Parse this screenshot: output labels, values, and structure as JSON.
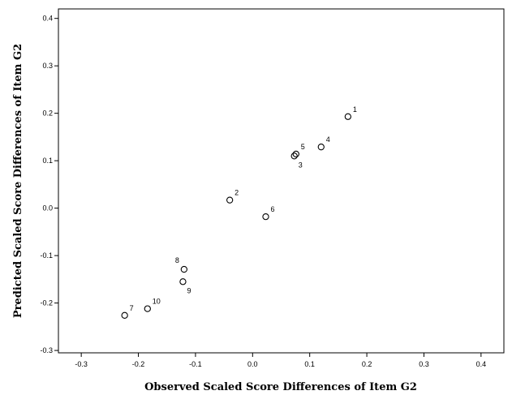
{
  "chart_data": {
    "type": "scatter",
    "xlabel": "Observed Scaled Score Differences of Item G2",
    "ylabel": "Predicted Scaled Score Differences of Item G2",
    "xlim": [
      -0.34,
      0.44
    ],
    "ylim": [
      -0.305,
      0.42
    ],
    "xticks": [
      -0.3,
      -0.2,
      -0.1,
      0.0,
      0.1,
      0.2,
      0.3,
      0.4
    ],
    "xtick_labels": [
      "-0.3",
      "-0.2",
      "-0.1",
      "0.0",
      "0.1",
      "0.2",
      "0.3",
      "0.4"
    ],
    "yticks": [
      -0.3,
      -0.2,
      -0.1,
      0.0,
      0.1,
      0.2,
      0.3,
      0.4
    ],
    "ytick_labels": [
      "-0.3",
      "-0.2",
      "-0.1",
      "0.0",
      "0.1",
      "0.2",
      "0.3",
      "0.4"
    ],
    "grid": false,
    "marker": "hollow-circle",
    "points": [
      {
        "label": "1",
        "x": 0.167,
        "y": 0.193,
        "label_pos": "upper-right"
      },
      {
        "label": "2",
        "x": -0.04,
        "y": 0.017,
        "label_pos": "upper-right"
      },
      {
        "label": "3",
        "x": 0.073,
        "y": 0.11,
        "label_pos": "lower-right"
      },
      {
        "label": "4",
        "x": 0.12,
        "y": 0.129,
        "label_pos": "upper-right"
      },
      {
        "label": "5",
        "x": 0.076,
        "y": 0.114,
        "label_pos": "upper-right"
      },
      {
        "label": "6",
        "x": 0.023,
        "y": -0.018,
        "label_pos": "upper-right"
      },
      {
        "label": "7",
        "x": -0.224,
        "y": -0.226,
        "label_pos": "upper-right"
      },
      {
        "label": "8",
        "x": -0.12,
        "y": -0.129,
        "label_pos": "upper-left"
      },
      {
        "label": "9",
        "x": -0.122,
        "y": -0.155,
        "label_pos": "lower-right"
      },
      {
        "label": "10",
        "x": -0.184,
        "y": -0.212,
        "label_pos": "upper-right"
      }
    ]
  }
}
